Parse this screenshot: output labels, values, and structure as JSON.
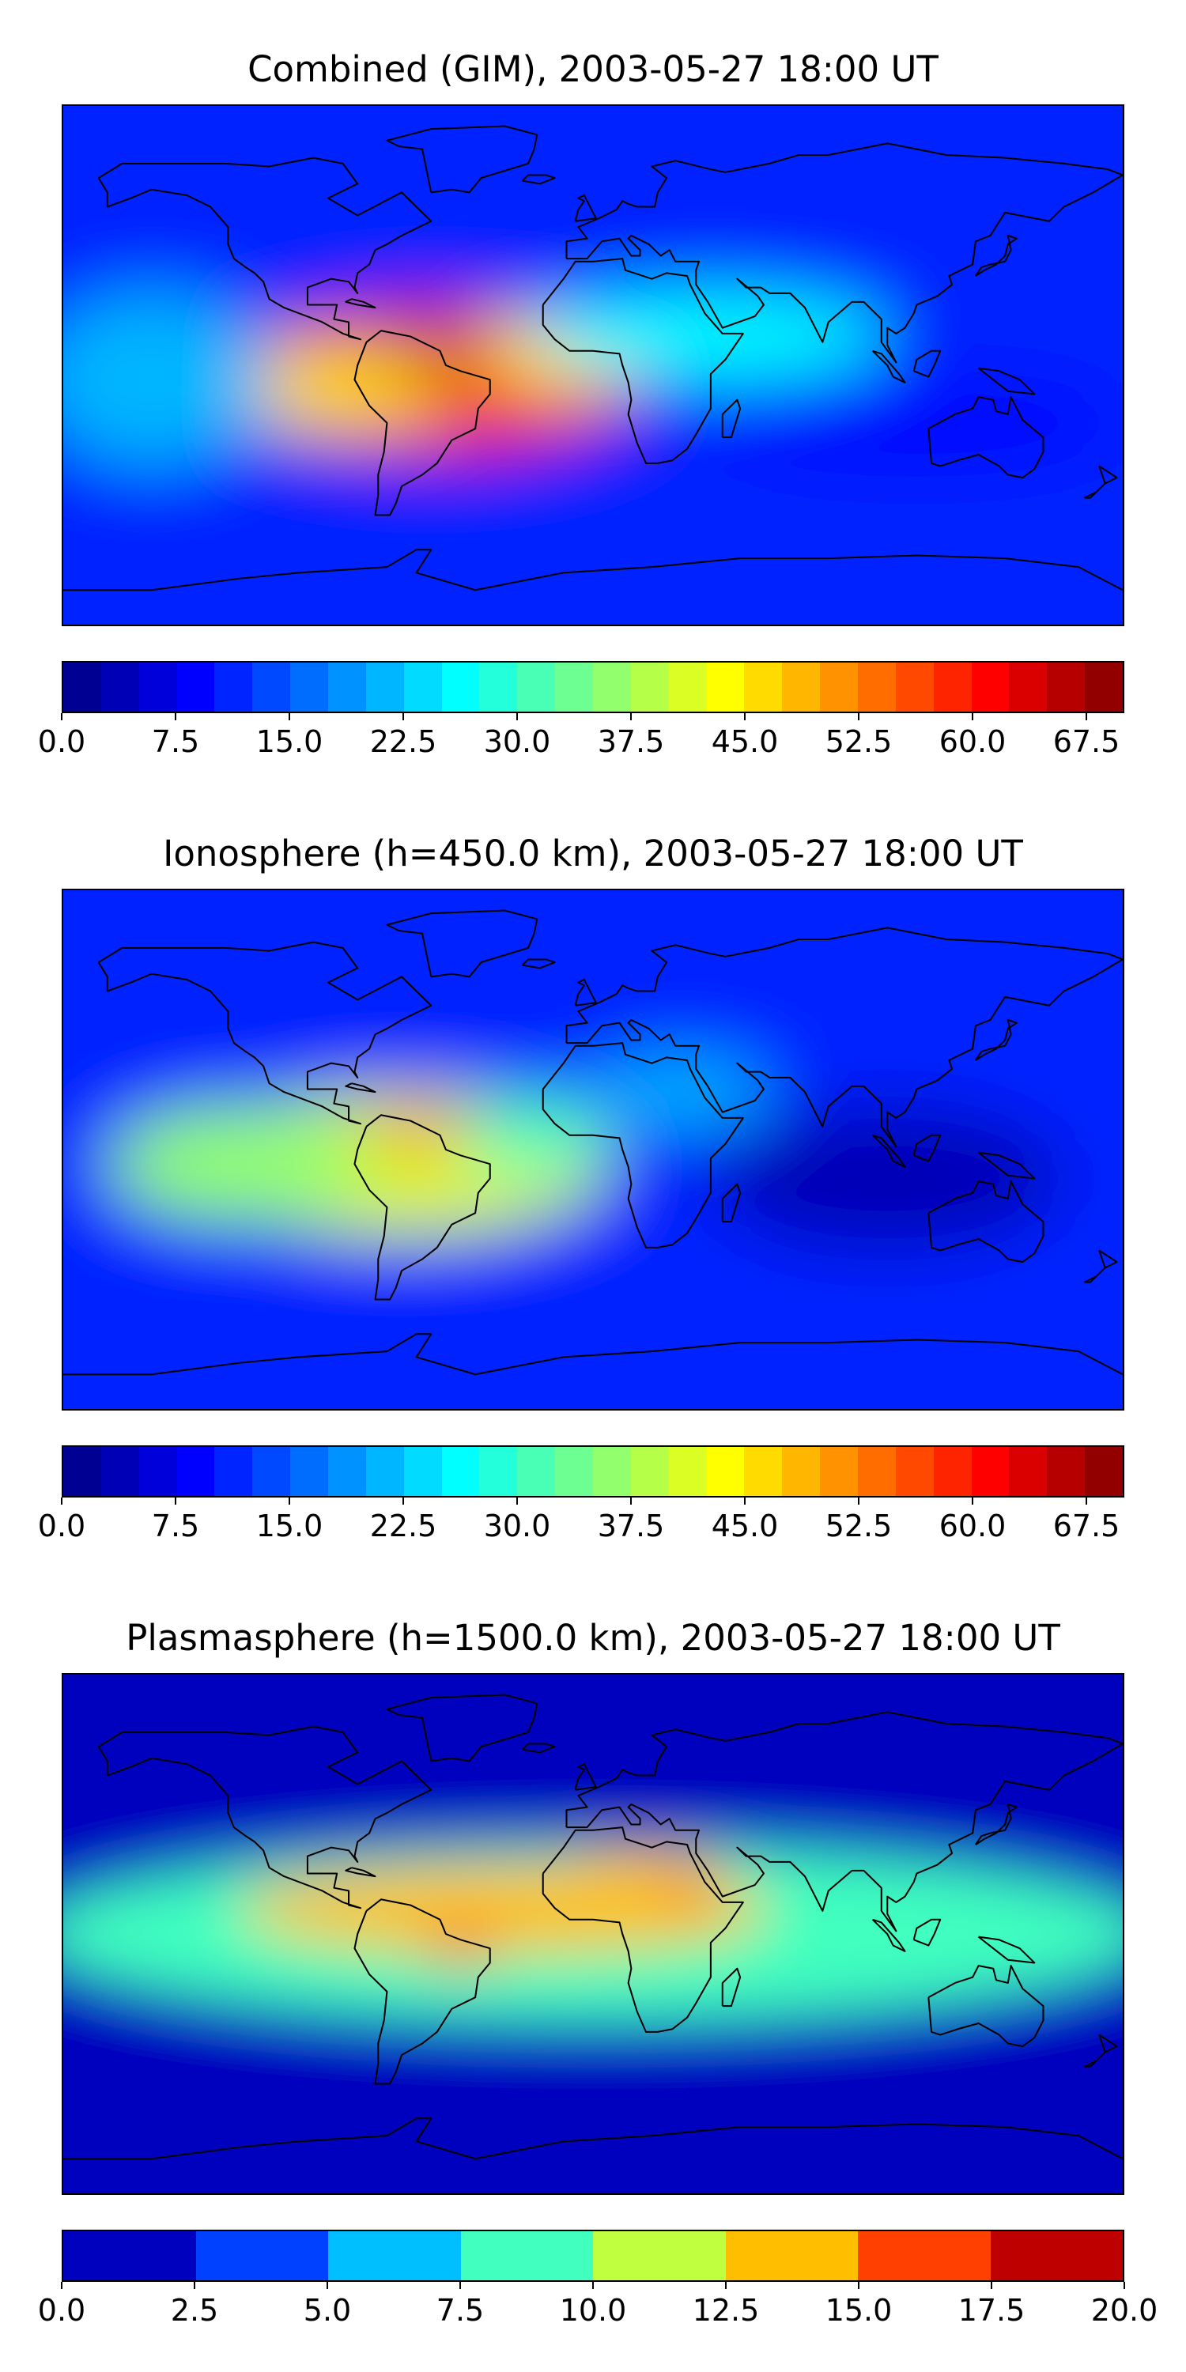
{
  "panels": [
    {
      "title": "Combined (GIM), 2003-05-27 18:00 UT",
      "colorbar": {
        "min": 0.0,
        "max": 70.0,
        "levels": 28,
        "ticks": [
          "0.0",
          "7.5",
          "15.0",
          "22.5",
          "30.0",
          "37.5",
          "45.0",
          "52.5",
          "60.0",
          "67.5"
        ],
        "tick_values": [
          0.0,
          7.5,
          15.0,
          22.5,
          30.0,
          37.5,
          45.0,
          52.5,
          60.0,
          67.5
        ]
      },
      "field": {
        "background": 12,
        "blobs": [
          {
            "lon": -55,
            "lat": -5,
            "rx": 70,
            "ry": 25,
            "value": 58
          },
          {
            "lon": -60,
            "lat": 2,
            "rx": 30,
            "ry": 10,
            "value": 66
          },
          {
            "lon": -95,
            "lat": -8,
            "rx": 45,
            "ry": 14,
            "value": 47
          },
          {
            "lon": -10,
            "lat": 5,
            "rx": 30,
            "ry": 14,
            "value": 45
          },
          {
            "lon": 40,
            "lat": 10,
            "rx": 60,
            "ry": 15,
            "value": 27
          },
          {
            "lon": -150,
            "lat": -5,
            "rx": 40,
            "ry": 30,
            "value": 22
          },
          {
            "lon": 110,
            "lat": -20,
            "rx": 70,
            "ry": 15,
            "value": 8
          },
          {
            "lon": 0,
            "lat": 78,
            "rx": 180,
            "ry": 12,
            "value": 10
          }
        ]
      }
    },
    {
      "title": "Ionosphere  (h=450.0 km), 2003-05-27 18:00 UT",
      "colorbar": {
        "min": 0.0,
        "max": 70.0,
        "levels": 28,
        "ticks": [
          "0.0",
          "7.5",
          "15.0",
          "22.5",
          "30.0",
          "37.5",
          "45.0",
          "52.5",
          "60.0",
          "67.5"
        ],
        "tick_values": [
          0.0,
          7.5,
          15.0,
          22.5,
          30.0,
          37.5,
          45.0,
          52.5,
          60.0,
          67.5
        ]
      },
      "field": {
        "background": 10,
        "blobs": [
          {
            "lon": -65,
            "lat": -5,
            "rx": 70,
            "ry": 25,
            "value": 42
          },
          {
            "lon": -55,
            "lat": 5,
            "rx": 25,
            "ry": 8,
            "value": 50
          },
          {
            "lon": -120,
            "lat": -5,
            "rx": 45,
            "ry": 20,
            "value": 36
          },
          {
            "lon": -20,
            "lat": 5,
            "rx": 25,
            "ry": 14,
            "value": 30
          },
          {
            "lon": 100,
            "lat": -10,
            "rx": 60,
            "ry": 25,
            "value": 3
          },
          {
            "lon": 30,
            "lat": 20,
            "rx": 30,
            "ry": 12,
            "value": 20
          }
        ]
      }
    },
    {
      "title": "Plasmasphere (h=1500.0 km), 2003-05-27 18:00 UT",
      "colorbar": {
        "min": 0.0,
        "max": 20.0,
        "levels": 8,
        "ticks": [
          "0.0",
          "2.5",
          "5.0",
          "7.5",
          "10.0",
          "12.5",
          "15.0",
          "17.5",
          "20.0"
        ],
        "tick_values": [
          0.0,
          2.5,
          5.0,
          7.5,
          10.0,
          12.5,
          15.0,
          17.5,
          20.0
        ]
      },
      "field": {
        "background": 2.0,
        "blobs": [
          {
            "lon": 0,
            "lat": 0,
            "rx": 190,
            "ry": 30,
            "value": 9.5
          },
          {
            "lon": -30,
            "lat": 8,
            "rx": 90,
            "ry": 15,
            "value": 13.5
          },
          {
            "lon": 15,
            "lat": 18,
            "rx": 30,
            "ry": 10,
            "value": 14
          },
          {
            "lon": -45,
            "lat": -5,
            "rx": 12,
            "ry": 6,
            "value": 16
          },
          {
            "lon": 33,
            "lat": 15,
            "rx": 8,
            "ry": 5,
            "value": 16
          },
          {
            "lon": -130,
            "lat": 62,
            "rx": 35,
            "ry": 12,
            "value": 0.5
          }
        ]
      }
    }
  ]
}
